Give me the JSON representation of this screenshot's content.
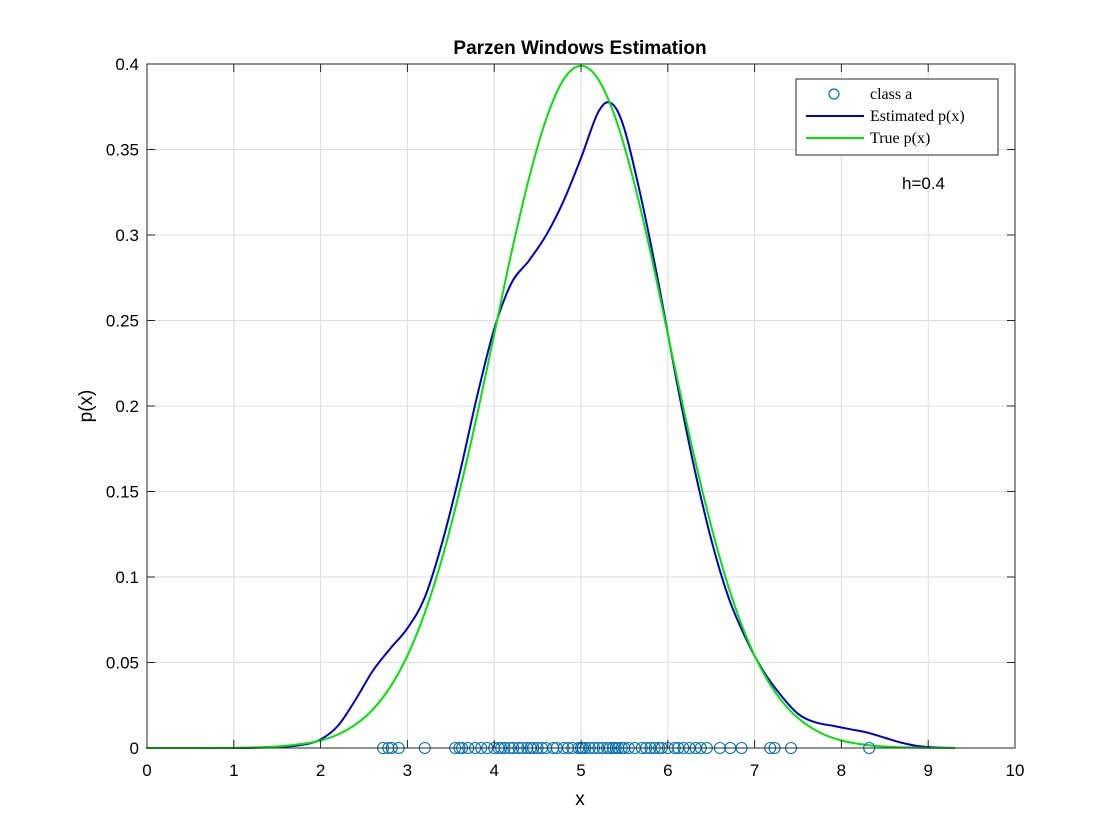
{
  "chart_data": {
    "type": "line",
    "title": "Parzen Windows Estimation",
    "xlabel": "x",
    "ylabel": "p(x)",
    "xlim": [
      0,
      10
    ],
    "ylim": [
      0,
      0.4
    ],
    "x_ticks": [
      "0",
      "1",
      "2",
      "3",
      "4",
      "5",
      "6",
      "7",
      "8",
      "9",
      "10"
    ],
    "y_ticks": [
      "0",
      "0.05",
      "0.1",
      "0.15",
      "0.2",
      "0.25",
      "0.3",
      "0.35",
      "0.4"
    ],
    "grid": true,
    "legend_position": "top-right",
    "annotation": "h=0.4",
    "series": [
      {
        "name": "class a",
        "style": "markers",
        "color": "#0072BD",
        "x": [
          2.72,
          2.78,
          2.82,
          2.9,
          3.2,
          3.55,
          3.6,
          3.63,
          3.7,
          3.78,
          3.85,
          3.92,
          4.0,
          4.05,
          4.08,
          4.12,
          4.18,
          4.22,
          4.28,
          4.32,
          4.38,
          4.42,
          4.45,
          4.5,
          4.55,
          4.6,
          4.68,
          4.72,
          4.8,
          4.85,
          4.9,
          4.97,
          5.0,
          5.02,
          5.05,
          5.1,
          5.15,
          5.2,
          5.25,
          5.3,
          5.33,
          5.37,
          5.4,
          5.43,
          5.47,
          5.5,
          5.55,
          5.62,
          5.7,
          5.75,
          5.8,
          5.85,
          5.9,
          5.93,
          6.0,
          6.08,
          6.12,
          6.18,
          6.25,
          6.32,
          6.38,
          6.45,
          6.6,
          6.72,
          6.85,
          7.18,
          7.23,
          7.42,
          8.32
        ],
        "y": [
          0,
          0,
          0,
          0,
          0,
          0,
          0,
          0,
          0,
          0,
          0,
          0,
          0,
          0,
          0,
          0,
          0,
          0,
          0,
          0,
          0,
          0,
          0,
          0,
          0,
          0,
          0,
          0,
          0,
          0,
          0,
          0,
          0,
          0,
          0,
          0,
          0,
          0,
          0,
          0,
          0,
          0,
          0,
          0,
          0,
          0,
          0,
          0,
          0,
          0,
          0,
          0,
          0,
          0,
          0,
          0,
          0,
          0,
          0,
          0,
          0,
          0,
          0,
          0,
          0,
          0,
          0,
          0,
          0
        ]
      },
      {
        "name": "Estimated p(x)",
        "style": "line",
        "color": "#0000CD",
        "x": [
          0,
          1.0,
          1.5,
          1.8,
          2.0,
          2.2,
          2.4,
          2.6,
          2.8,
          3.0,
          3.2,
          3.4,
          3.6,
          3.8,
          4.0,
          4.2,
          4.4,
          4.6,
          4.8,
          5.0,
          5.2,
          5.35,
          5.5,
          5.7,
          5.9,
          6.1,
          6.3,
          6.5,
          6.7,
          6.9,
          7.1,
          7.3,
          7.5,
          7.7,
          7.9,
          8.1,
          8.3,
          8.5,
          8.7,
          8.9,
          9.1,
          9.3
        ],
        "y": [
          0,
          0,
          0.0005,
          0.002,
          0.005,
          0.013,
          0.028,
          0.045,
          0.058,
          0.07,
          0.088,
          0.12,
          0.16,
          0.205,
          0.245,
          0.272,
          0.285,
          0.3,
          0.32,
          0.345,
          0.372,
          0.377,
          0.362,
          0.32,
          0.27,
          0.215,
          0.165,
          0.122,
          0.088,
          0.064,
          0.045,
          0.031,
          0.02,
          0.015,
          0.013,
          0.011,
          0.009,
          0.006,
          0.003,
          0.001,
          0.0003,
          0
        ]
      },
      {
        "name": "True p(x)",
        "style": "line",
        "color": "#00E600",
        "x": [
          0,
          1.0,
          1.5,
          1.8,
          2.0,
          2.2,
          2.4,
          2.6,
          2.8,
          3.0,
          3.2,
          3.4,
          3.6,
          3.8,
          4.0,
          4.2,
          4.4,
          4.6,
          4.8,
          5.0,
          5.2,
          5.4,
          5.6,
          5.8,
          6.0,
          6.2,
          6.4,
          6.6,
          6.8,
          7.0,
          7.2,
          7.4,
          7.6,
          7.8,
          8.0,
          8.2,
          8.4,
          8.6,
          8.8,
          9.0,
          9.3
        ],
        "y": [
          0,
          0.0001,
          0.0009,
          0.0025,
          0.0044,
          0.0079,
          0.0136,
          0.0224,
          0.0355,
          0.054,
          0.079,
          0.111,
          0.15,
          0.194,
          0.242,
          0.29,
          0.333,
          0.368,
          0.391,
          0.399,
          0.391,
          0.368,
          0.333,
          0.29,
          0.242,
          0.194,
          0.15,
          0.111,
          0.079,
          0.054,
          0.0355,
          0.0224,
          0.0136,
          0.0079,
          0.0044,
          0.0024,
          0.0012,
          0.0006,
          0.0003,
          0.0001,
          0
        ]
      }
    ]
  }
}
